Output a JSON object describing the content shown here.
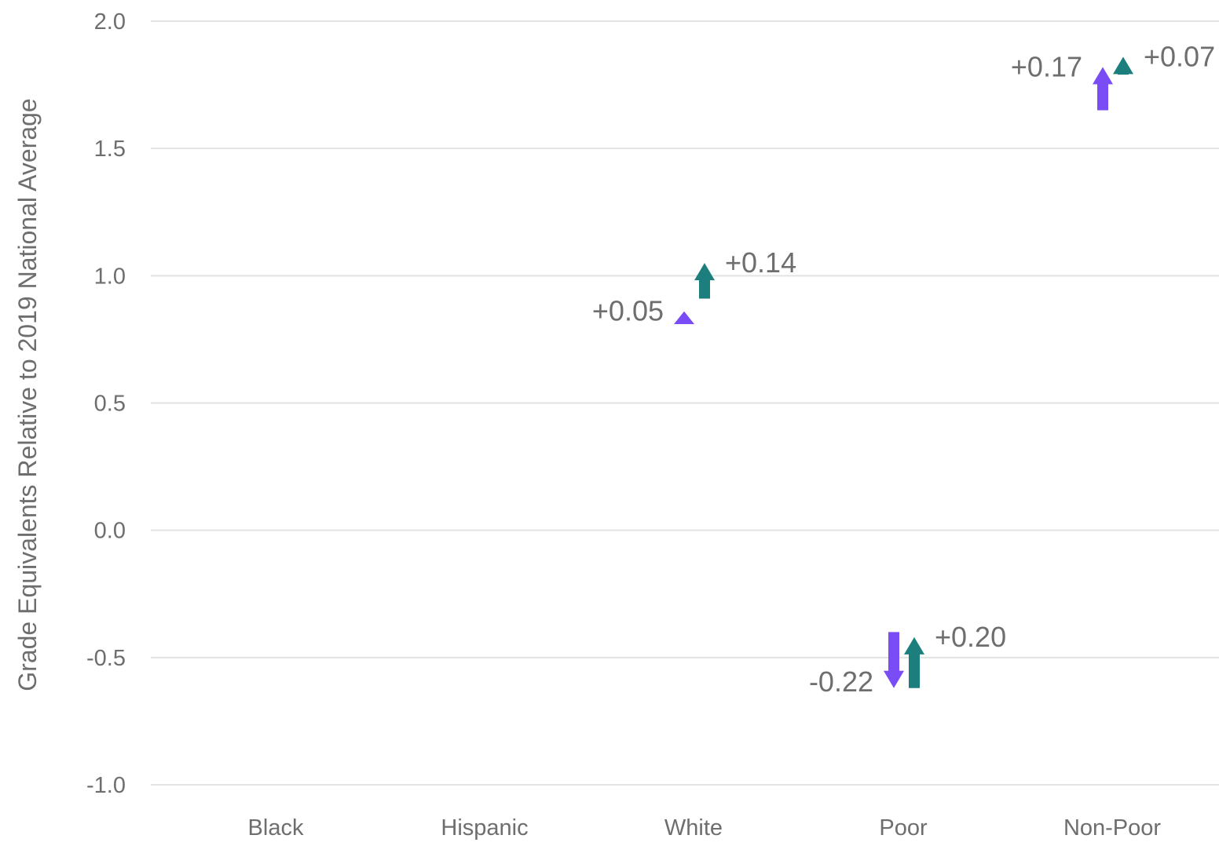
{
  "chart_data": {
    "type": "arrow",
    "title": "",
    "ylabel": "Grade Equivalents Relative to 2019 National Average",
    "xlabel": "",
    "ylim": [
      -1.0,
      2.0
    ],
    "yticks": [
      {
        "value": 2.0,
        "label": "2.0"
      },
      {
        "value": 1.5,
        "label": "1.5"
      },
      {
        "value": 1.0,
        "label": "1.0"
      },
      {
        "value": 0.5,
        "label": "0.5"
      },
      {
        "value": 0.0,
        "label": "0.0"
      },
      {
        "value": -0.5,
        "label": "-0.5"
      },
      {
        "value": -1.0,
        "label": "-1.0"
      }
    ],
    "grid": true,
    "categories": [
      "Black",
      "Hispanic",
      "White",
      "Poor",
      "Non-Poor"
    ],
    "series_colors": [
      "#7a4cf5",
      "#1c7f7d"
    ],
    "series": [
      {
        "color": "#7a4cf5",
        "points": [
          {
            "category": "White",
            "start": 0.81,
            "end": 0.86,
            "change_label": "+0.05"
          },
          {
            "category": "Poor",
            "start": -0.4,
            "end": -0.62,
            "change_label": "-0.22"
          },
          {
            "category": "Non-Poor",
            "start": 1.65,
            "end": 1.82,
            "change_label": "+0.17"
          }
        ]
      },
      {
        "color": "#1c7f7d",
        "points": [
          {
            "category": "White",
            "start": 0.91,
            "end": 1.05,
            "change_label": "+0.14"
          },
          {
            "category": "Poor",
            "start": -0.62,
            "end": -0.42,
            "change_label": "+0.20"
          },
          {
            "category": "Non-Poor",
            "start": 1.79,
            "end": 1.86,
            "change_label": "+0.07"
          }
        ]
      }
    ]
  }
}
